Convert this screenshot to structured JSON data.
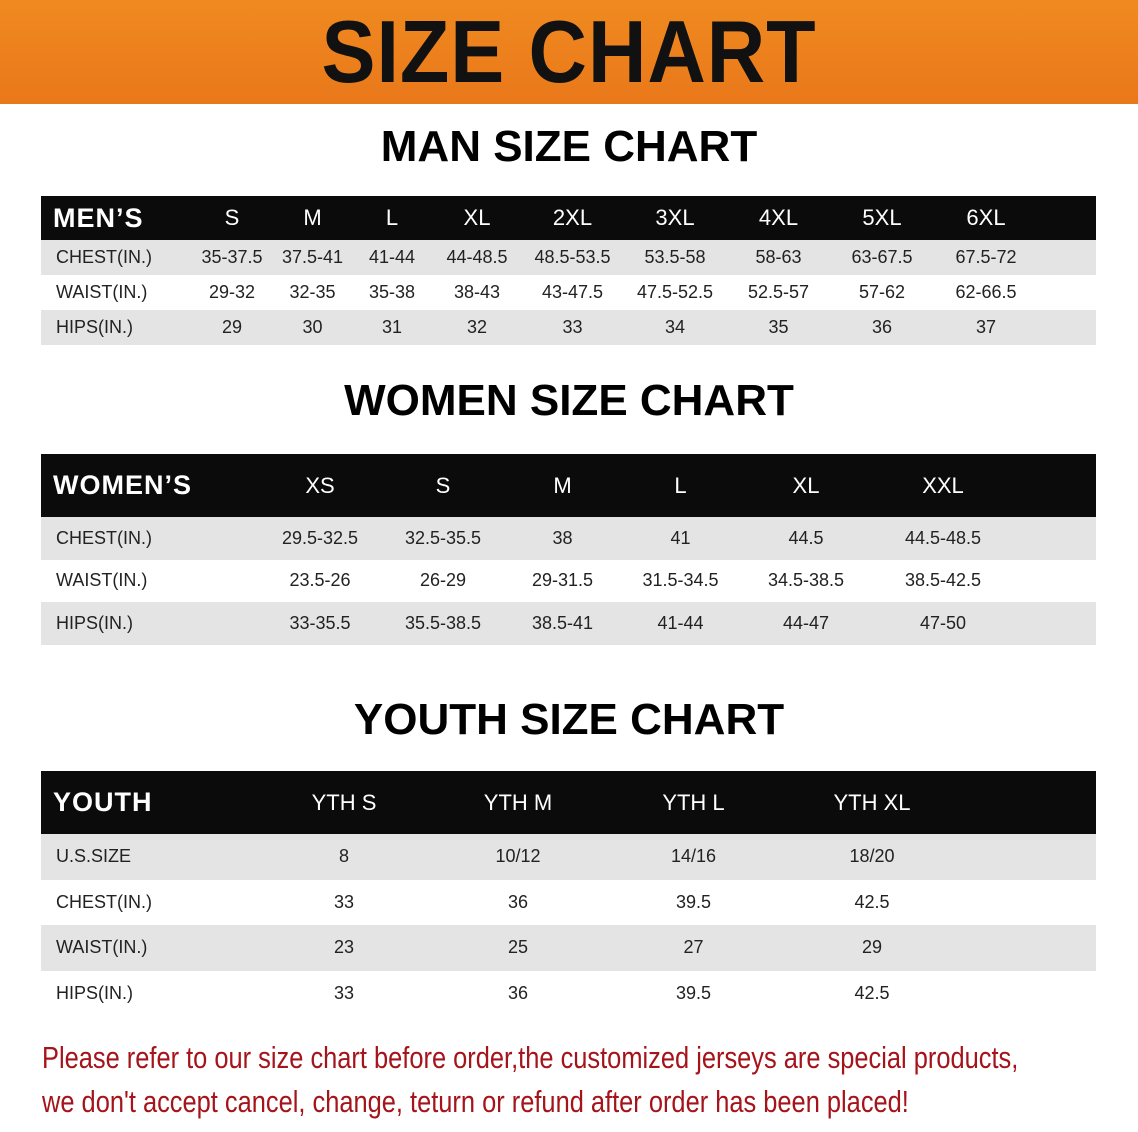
{
  "banner_title": "SIZE CHART",
  "colors": {
    "banner": "#ec7e1c",
    "header_row": "#0b0b0b",
    "stripe": "#e4e4e4",
    "note": "#a5141b"
  },
  "men": {
    "title": "MAN SIZE CHART",
    "header": [
      "MEN’S",
      "S",
      "M",
      "L",
      "XL",
      "2XL",
      "3XL",
      "4XL",
      "5XL",
      "6XL"
    ],
    "rows": [
      [
        "CHEST(IN.)",
        "35-37.5",
        "37.5-41",
        "41-44",
        "44-48.5",
        "48.5-53.5",
        "53.5-58",
        "58-63",
        "63-67.5",
        "67.5-72"
      ],
      [
        "WAIST(IN.)",
        "29-32",
        "32-35",
        "35-38",
        "38-43",
        "43-47.5",
        "47.5-52.5",
        "52.5-57",
        "57-62",
        "62-66.5"
      ],
      [
        "HIPS(IN.)",
        "29",
        "30",
        "31",
        "32",
        "33",
        "34",
        "35",
        "36",
        "37"
      ]
    ]
  },
  "women": {
    "title": "WOMEN SIZE CHART",
    "header": [
      "WOMEN’S",
      "XS",
      "S",
      "M",
      "L",
      "XL",
      "XXL"
    ],
    "rows": [
      [
        "CHEST(IN.)",
        "29.5-32.5",
        "32.5-35.5",
        "38",
        "41",
        "44.5",
        "44.5-48.5"
      ],
      [
        "WAIST(IN.)",
        "23.5-26",
        "26-29",
        "29-31.5",
        "31.5-34.5",
        "34.5-38.5",
        "38.5-42.5"
      ],
      [
        "HIPS(IN.)",
        "33-35.5",
        "35.5-38.5",
        "38.5-41",
        "41-44",
        "44-47",
        "47-50"
      ]
    ]
  },
  "youth": {
    "title": "YOUTH SIZE CHART",
    "header": [
      "YOUTH",
      "YTH S",
      "YTH M",
      "YTH L",
      "YTH XL"
    ],
    "rows": [
      [
        "U.S.SIZE",
        "8",
        "10/12",
        "14/16",
        "18/20"
      ],
      [
        "CHEST(IN.)",
        "33",
        "36",
        "39.5",
        "42.5"
      ],
      [
        "WAIST(IN.)",
        "23",
        "25",
        "27",
        "29"
      ],
      [
        "HIPS(IN.)",
        "33",
        "36",
        "39.5",
        "42.5"
      ]
    ]
  },
  "note": {
    "line1": "Please refer to our size chart before order,the customized jerseys are special products,",
    "line2": "we don't accept cancel, change, teturn or refund after order has been placed!"
  }
}
